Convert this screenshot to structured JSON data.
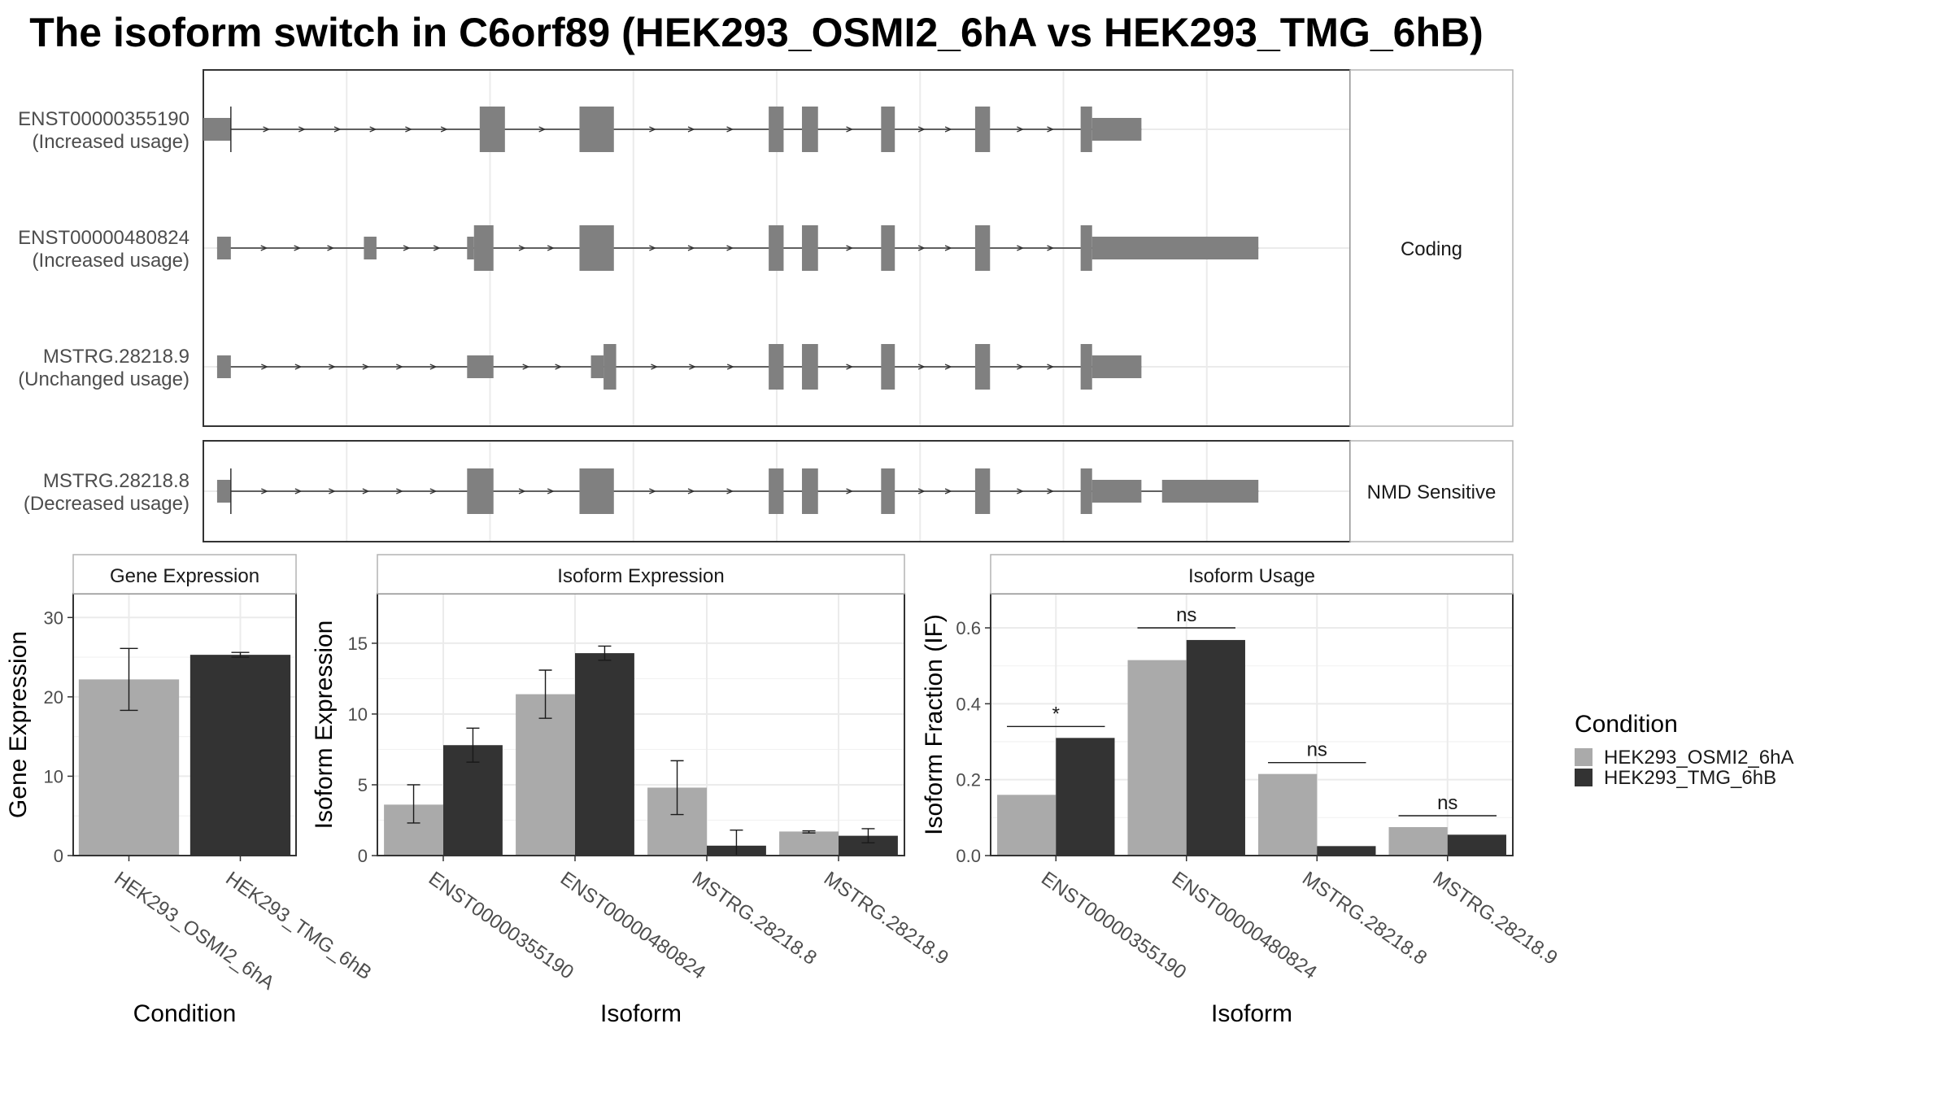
{
  "title": "The isoform switch in C6orf89 (HEK293_OSMI2_6hA vs HEK293_TMG_6hB)",
  "colors": {
    "condA": "#aaaaaa",
    "condB": "#333333",
    "exon": "#808080",
    "grid": "#ebebeb",
    "panel_border": "#333333",
    "strip_border": "#b3b3b3"
  },
  "structure": {
    "x_domain": [
      0,
      100
    ],
    "facets": [
      {
        "label": "Coding",
        "transcripts": [
          "ENST00000355190",
          "ENST00000480824",
          "MSTRG.28218.9"
        ]
      },
      {
        "label": "NMD Sensitive",
        "transcripts": [
          "MSTRG.28218.8"
        ]
      }
    ],
    "transcripts": [
      {
        "id": "ENST00000355190",
        "usage": "(Increased usage)",
        "exons": [
          [
            0,
            2.4,
            "u"
          ],
          [
            24.1,
            26.3,
            "c"
          ],
          [
            32.8,
            35.8,
            "c"
          ],
          [
            49.3,
            50.6,
            "c"
          ],
          [
            52.2,
            53.6,
            "c"
          ],
          [
            59.1,
            60.3,
            "c"
          ],
          [
            67.3,
            68.6,
            "c"
          ],
          [
            76.5,
            77.5,
            "c"
          ],
          [
            77.5,
            81.8,
            "u"
          ]
        ],
        "cds_start": 2.4
      },
      {
        "id": "ENST00000480824",
        "usage": "(Increased usage)",
        "exons": [
          [
            1.2,
            2.4,
            "u"
          ],
          [
            14.0,
            15.1,
            "u"
          ],
          [
            23.0,
            23.6,
            "u"
          ],
          [
            23.6,
            25.3,
            "c"
          ],
          [
            32.8,
            35.8,
            "c"
          ],
          [
            49.3,
            50.6,
            "c"
          ],
          [
            52.2,
            53.6,
            "c"
          ],
          [
            59.1,
            60.3,
            "c"
          ],
          [
            67.3,
            68.6,
            "c"
          ],
          [
            76.5,
            77.5,
            "c"
          ],
          [
            77.5,
            92.0,
            "u"
          ]
        ]
      },
      {
        "id": "MSTRG.28218.9",
        "usage": "(Unchanged usage)",
        "exons": [
          [
            1.2,
            2.4,
            "u"
          ],
          [
            23.0,
            25.3,
            "u"
          ],
          [
            33.8,
            34.9,
            "u"
          ],
          [
            34.9,
            36.0,
            "c"
          ],
          [
            49.3,
            50.6,
            "c"
          ],
          [
            52.2,
            53.6,
            "c"
          ],
          [
            59.1,
            60.3,
            "c"
          ],
          [
            67.3,
            68.6,
            "c"
          ],
          [
            76.5,
            77.5,
            "c"
          ],
          [
            77.5,
            81.8,
            "u"
          ]
        ]
      },
      {
        "id": "MSTRG.28218.8",
        "usage": "(Decreased usage)",
        "exons": [
          [
            1.2,
            2.4,
            "u"
          ],
          [
            23.0,
            25.3,
            "c"
          ],
          [
            32.8,
            35.8,
            "c"
          ],
          [
            49.3,
            50.6,
            "c"
          ],
          [
            52.2,
            53.6,
            "c"
          ],
          [
            59.1,
            60.3,
            "c"
          ],
          [
            67.3,
            68.6,
            "c"
          ],
          [
            76.5,
            77.5,
            "c"
          ],
          [
            77.5,
            81.8,
            "u"
          ],
          [
            83.6,
            92.0,
            "u"
          ]
        ],
        "cds_start": 2.4
      }
    ]
  },
  "legend": {
    "title": "Condition",
    "entries": [
      {
        "label": "HEK293_OSMI2_6hA",
        "color": "#aaaaaa"
      },
      {
        "label": "HEK293_TMG_6hB",
        "color": "#333333"
      }
    ]
  },
  "chart_data": [
    {
      "type": "bar",
      "title": "Gene Expression",
      "xlabel": "Condition",
      "ylabel": "Gene Expression",
      "ylim": [
        0,
        33
      ],
      "yticks": [
        0,
        10,
        20,
        30
      ],
      "categories": [
        "HEK293_OSMI2_6hA",
        "HEK293_TMG_6hB"
      ],
      "values": [
        22.2,
        25.3
      ],
      "errors": [
        [
          18.3,
          26.1
        ],
        [
          25.0,
          25.6
        ]
      ],
      "colors": [
        "#aaaaaa",
        "#333333"
      ]
    },
    {
      "type": "bar",
      "title": "Isoform Expression",
      "xlabel": "Isoform",
      "ylabel": "Isoform Expression",
      "ylim": [
        0,
        18.5
      ],
      "yticks": [
        0,
        5,
        10,
        15
      ],
      "categories": [
        "ENST00000355190",
        "ENST00000480824",
        "MSTRG.28218.8",
        "MSTRG.28218.9"
      ],
      "series": [
        {
          "name": "HEK293_OSMI2_6hA",
          "values": [
            3.6,
            11.4,
            4.8,
            1.7
          ],
          "errors": [
            [
              2.3,
              5.0
            ],
            [
              9.7,
              13.1
            ],
            [
              2.9,
              6.7
            ],
            [
              1.6,
              1.75
            ]
          ]
        },
        {
          "name": "HEK293_TMG_6hB",
          "values": [
            7.8,
            14.3,
            0.7,
            1.4
          ],
          "errors": [
            [
              6.6,
              9.0
            ],
            [
              13.8,
              14.8
            ],
            [
              0.0,
              1.8
            ],
            [
              0.9,
              1.9
            ]
          ]
        }
      ]
    },
    {
      "type": "bar",
      "title": "Isoform Usage",
      "xlabel": "Isoform",
      "ylabel": "Isoform Fraction (IF)",
      "ylim": [
        0,
        0.69
      ],
      "yticks": [
        "0.0",
        "0.2",
        "0.4",
        "0.6"
      ],
      "categories": [
        "ENST00000355190",
        "ENST00000480824",
        "MSTRG.28218.8",
        "MSTRG.28218.9"
      ],
      "series": [
        {
          "name": "HEK293_OSMI2_6hA",
          "values": [
            0.16,
            0.515,
            0.215,
            0.075
          ]
        },
        {
          "name": "HEK293_TMG_6hB",
          "values": [
            0.31,
            0.568,
            0.025,
            0.055
          ]
        }
      ],
      "significance": [
        {
          "label": "*",
          "y": 0.34
        },
        {
          "label": "ns",
          "y": 0.6
        },
        {
          "label": "ns",
          "y": 0.245
        },
        {
          "label": "ns",
          "y": 0.105
        }
      ]
    }
  ]
}
